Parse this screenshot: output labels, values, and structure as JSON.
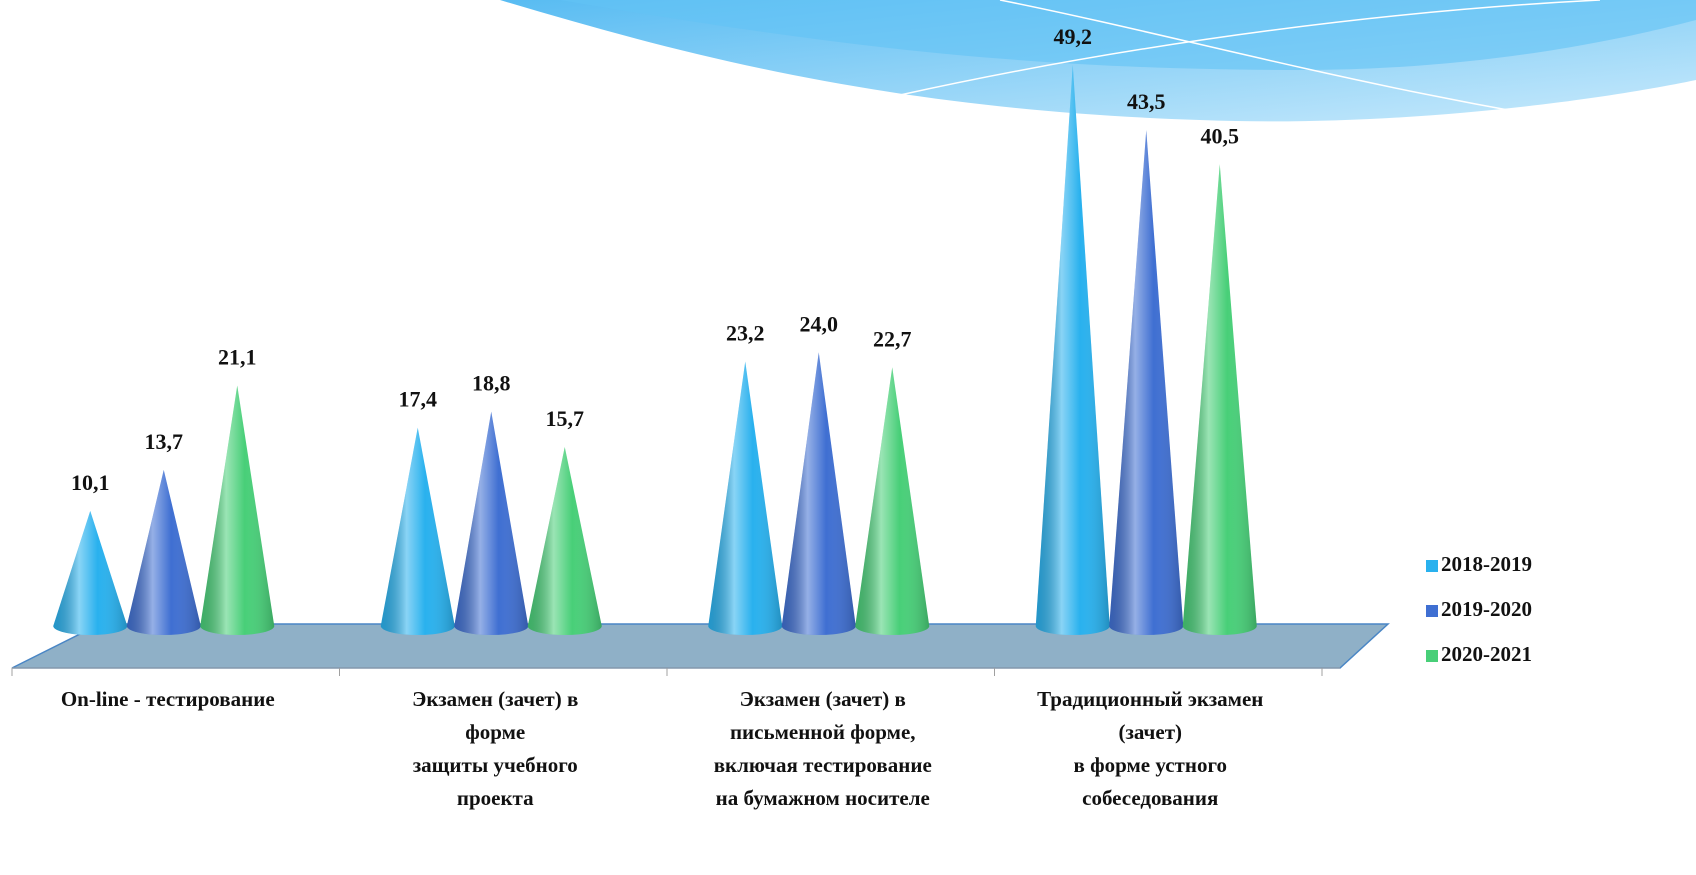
{
  "chart_data": {
    "type": "cone",
    "categories": [
      [
        "On-line - тестирование"
      ],
      [
        "Экзамен (зачет) в",
        "форме",
        "защиты учебного",
        "проекта"
      ],
      [
        "Экзамен (зачет) в",
        "письменной форме,",
        "включая тестирование",
        "на бумажном носителе"
      ],
      [
        "Традиционный экзамен",
        "(зачет)",
        "в форме устного",
        "собеседования"
      ]
    ],
    "series": [
      {
        "name": "2018-2019",
        "color": "#29b1ee",
        "values": [
          10.1,
          17.4,
          23.2,
          49.2
        ],
        "value_labels": [
          "10,1",
          "17,4",
          "23,2",
          "49,2"
        ]
      },
      {
        "name": "2019-2020",
        "color": "#3f6fd2",
        "values": [
          13.7,
          18.8,
          24.0,
          43.5
        ],
        "value_labels": [
          "13,7",
          "18,8",
          "24,0",
          "43,5"
        ]
      },
      {
        "name": "2020-2021",
        "color": "#48cf78",
        "values": [
          21.1,
          15.7,
          22.7,
          40.5
        ],
        "value_labels": [
          "21,1",
          "15,7",
          "22,7",
          "40,5"
        ]
      }
    ],
    "legend": "right"
  }
}
